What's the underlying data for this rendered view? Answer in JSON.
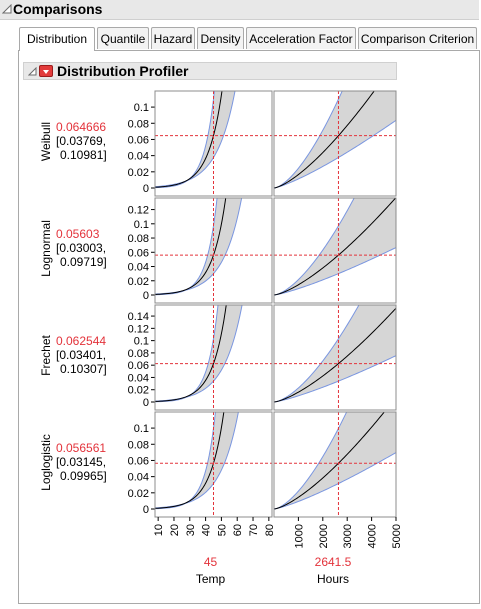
{
  "section": {
    "title": "Comparisons"
  },
  "tabs": [
    {
      "label": "Distribution",
      "active": true
    },
    {
      "label": "Quantile"
    },
    {
      "label": "Hazard"
    },
    {
      "label": "Density"
    },
    {
      "label": "Acceleration Factor"
    },
    {
      "label": "Comparison Criterion"
    }
  ],
  "profiler": {
    "title": "Distribution Profiler"
  },
  "colors": {
    "accent_red": "#e3333b",
    "band_fill": "#d6d6d6",
    "band_edge": "#7a96e0",
    "curve": "#000000"
  },
  "rows": [
    {
      "name": "Weibull",
      "value": "0.064666",
      "ci_low": "[0.03769,",
      "ci_high": "0.10981]",
      "ylim": [
        0,
        0.11
      ],
      "yticks": [
        "0.1",
        "0.08",
        "0.06",
        "0.04",
        "0.02",
        "0"
      ]
    },
    {
      "name": "Lognormal",
      "value": "0.05603",
      "ci_low": "[0.03003,",
      "ci_high": "0.09719]",
      "ylim": [
        0,
        0.125
      ],
      "yticks": [
        "0.12",
        "0.1",
        "0.08",
        "0.06",
        "0.04",
        "0.02",
        "0"
      ]
    },
    {
      "name": "Frechet",
      "value": "0.062544",
      "ci_low": "[0.03401,",
      "ci_high": "0.10307]",
      "ylim": [
        0,
        0.145
      ],
      "yticks": [
        "0.14",
        "0.12",
        "0.1",
        "0.08",
        "0.06",
        "0.04",
        "0.02",
        "0"
      ]
    },
    {
      "name": "Loglogistic",
      "value": "0.056561",
      "ci_low": "[0.03145,",
      "ci_high": "0.09965]",
      "ylim": [
        0,
        0.11
      ],
      "yticks": [
        "0.1",
        "0.08",
        "0.06",
        "0.04",
        "0.02",
        "0"
      ]
    }
  ],
  "x_factors": [
    {
      "label": "Temp",
      "current": "45",
      "ticks": [
        "10",
        "20",
        "30",
        "40",
        "50",
        "60",
        "70",
        "80"
      ]
    },
    {
      "label": "Hours",
      "current": "2641.5",
      "ticks": [
        "1000",
        "2000",
        "3000",
        "4000",
        "5000"
      ]
    }
  ],
  "chart_data": {
    "type": "line",
    "title": "Distribution Profiler",
    "x_factors": [
      "Temp",
      "Hours"
    ],
    "current_settings": {
      "Temp": 45,
      "Hours": 2641.5
    },
    "x_ranges": {
      "Temp": [
        8,
        82
      ],
      "Hours": [
        0,
        5000
      ]
    },
    "series": [
      {
        "name": "Weibull",
        "current_value": 0.064666,
        "ci": [
          0.03769,
          0.10981
        ]
      },
      {
        "name": "Lognormal",
        "current_value": 0.05603,
        "ci": [
          0.03003,
          0.09719
        ]
      },
      {
        "name": "Frechet",
        "current_value": 0.062544,
        "ci": [
          0.03401,
          0.10307
        ]
      },
      {
        "name": "Loglogistic",
        "current_value": 0.056561,
        "ci": [
          0.03145,
          0.09965
        ]
      }
    ]
  }
}
